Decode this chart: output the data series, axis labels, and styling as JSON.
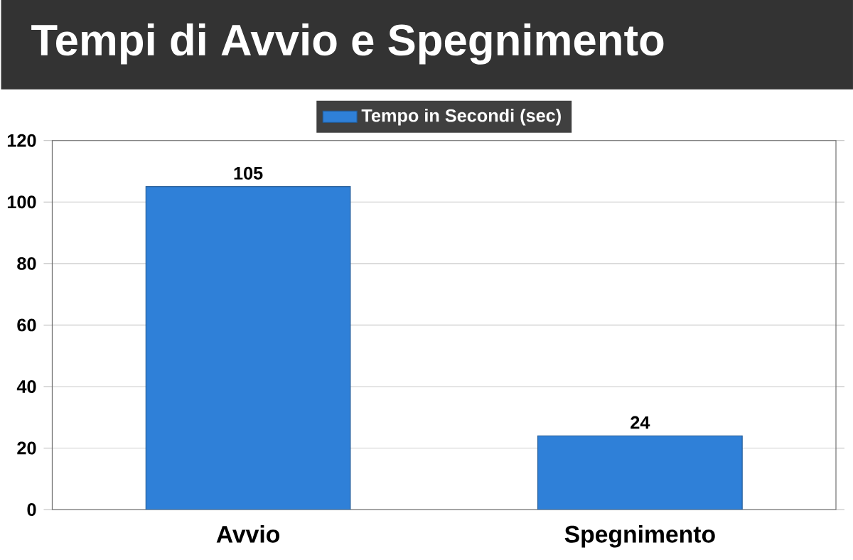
{
  "chart_data": {
    "type": "bar",
    "title": "Tempi di Avvio e Spegnimento",
    "categories": [
      "Avvio",
      "Spegnimento"
    ],
    "series": [
      {
        "name": "Tempo in Secondi (sec)",
        "color": "#2f80d8",
        "values": [
          105,
          24
        ]
      }
    ],
    "ylim": [
      0,
      120
    ],
    "yticks": [
      0,
      20,
      40,
      60,
      80,
      100,
      120
    ],
    "grid": "y",
    "legend": "top",
    "data_labels": true
  }
}
